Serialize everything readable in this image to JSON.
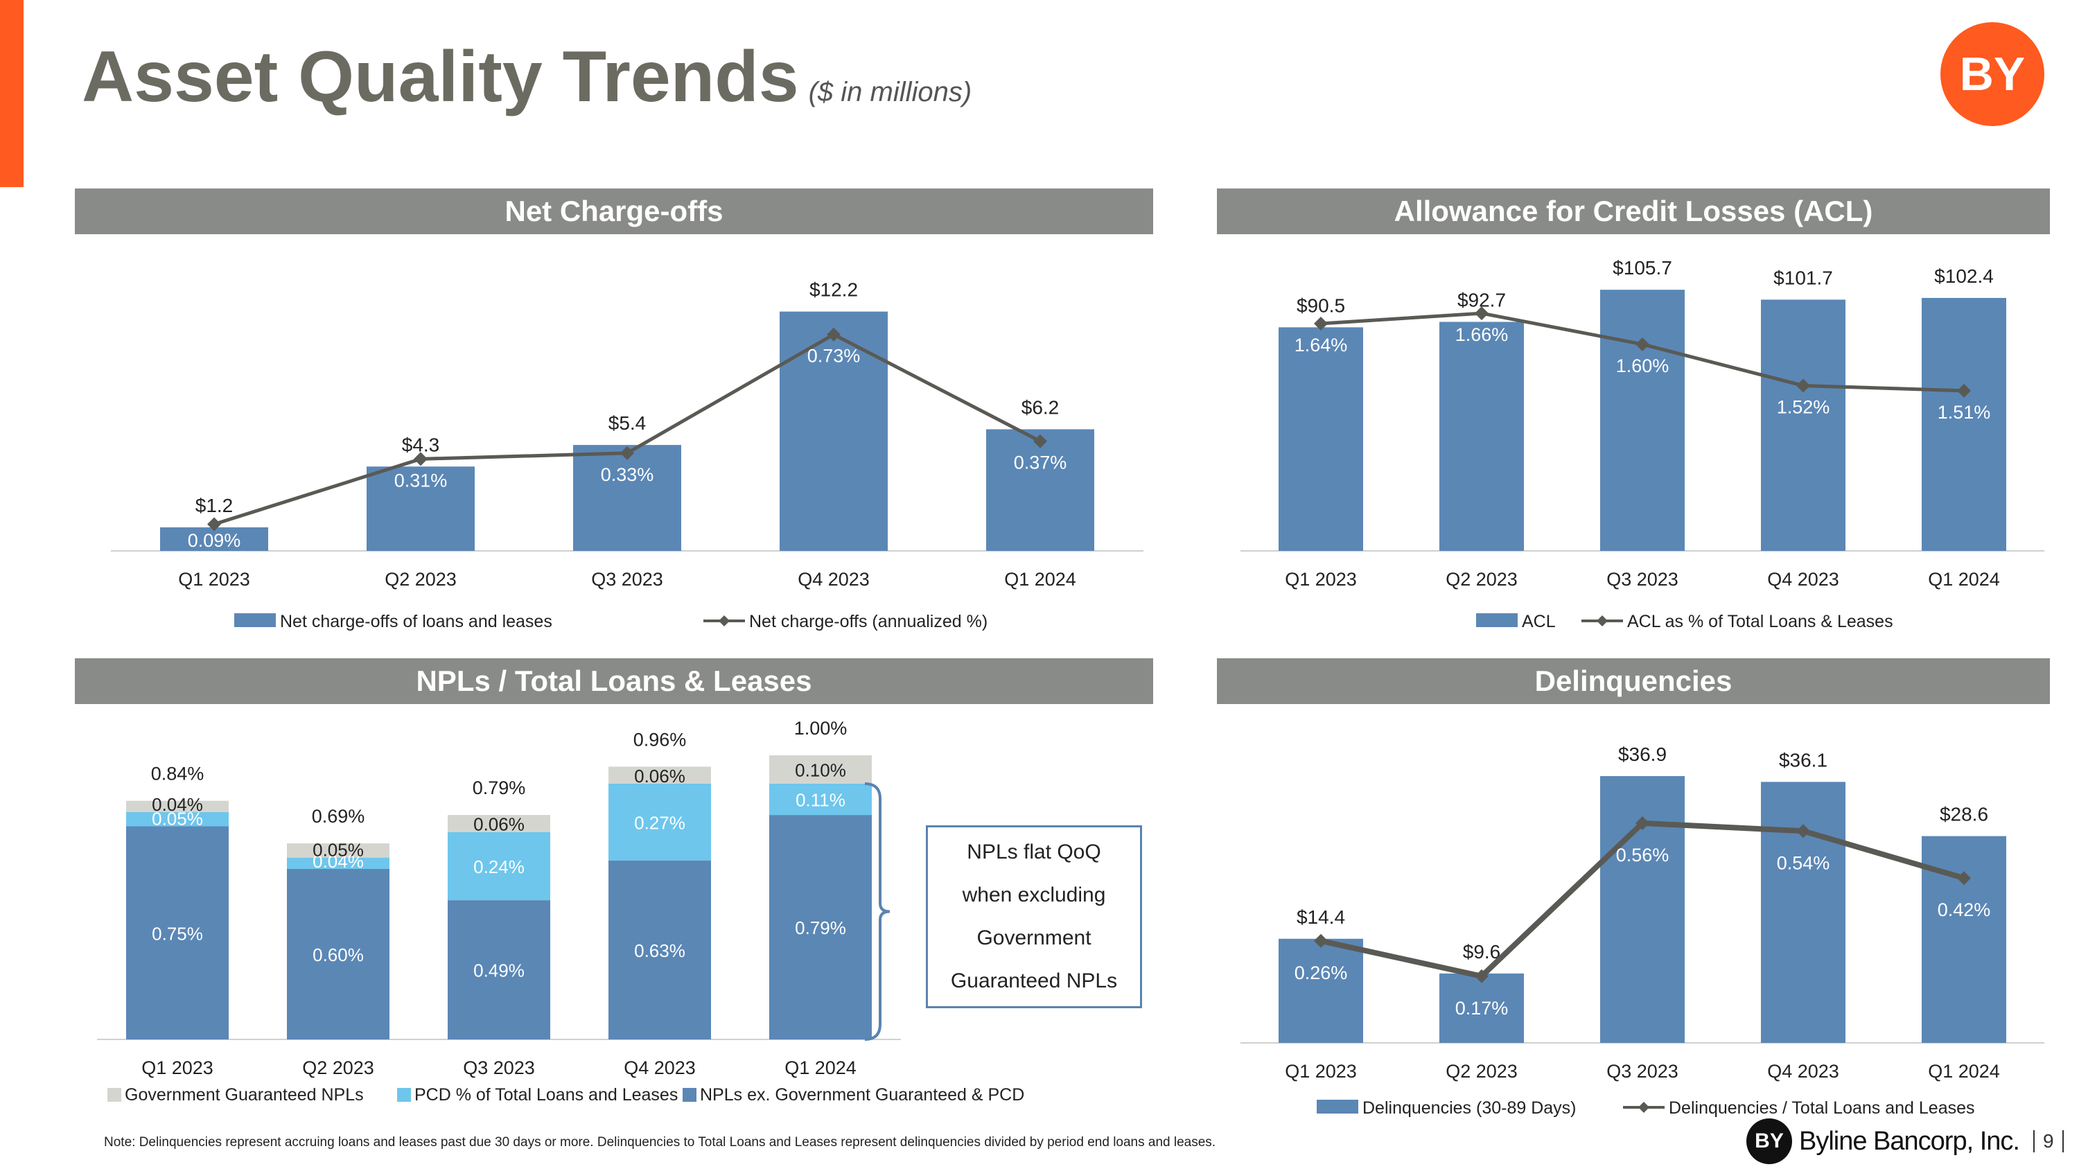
{
  "header": {
    "title": "Asset Quality Trends",
    "subtitle": "($ in millions)",
    "logo_text": "BY"
  },
  "colors": {
    "accent": "#ff5a1f",
    "bar_blue": "#5b87b5",
    "light_blue": "#6ec6ec",
    "gray_segment": "#d5d5d0",
    "line_gray": "#5a5a55",
    "section_header": "#898b88"
  },
  "chart_data": [
    {
      "id": "net-charge-offs",
      "section_title": "Net Charge-offs",
      "type": "bar",
      "categories": [
        "Q1 2023",
        "Q2 2023",
        "Q3 2023",
        "Q4 2023",
        "Q1 2024"
      ],
      "series": [
        {
          "name": "Net charge-offs of loans and leases",
          "kind": "bar",
          "values": [
            1.2,
            4.3,
            5.4,
            12.2,
            6.2
          ],
          "labels": [
            "$1.2",
            "$4.3",
            "$5.4",
            "$12.2",
            "$6.2"
          ]
        },
        {
          "name": "Net charge-offs (annualized %)",
          "kind": "line",
          "values": [
            0.09,
            0.31,
            0.33,
            0.73,
            0.37
          ],
          "labels": [
            "0.09%",
            "0.31%",
            "0.33%",
            "0.73%",
            "0.37%"
          ]
        }
      ],
      "ylim_bar": [
        0,
        13.6
      ],
      "ylim_line": [
        0,
        0.9
      ]
    },
    {
      "id": "acl",
      "section_title": "Allowance for Credit Losses (ACL)",
      "type": "bar",
      "categories": [
        "Q1 2023",
        "Q2 2023",
        "Q3 2023",
        "Q4 2023",
        "Q1 2024"
      ],
      "series": [
        {
          "name": "ACL",
          "kind": "bar",
          "values": [
            90.5,
            92.7,
            105.7,
            101.7,
            102.4
          ],
          "labels": [
            "$90.5",
            "$92.7",
            "$105.7",
            "$101.7",
            "$102.4"
          ]
        },
        {
          "name": "ACL as % of Total Loans & Leases",
          "kind": "line",
          "values": [
            1.64,
            1.66,
            1.6,
            1.52,
            1.51
          ],
          "labels": [
            "1.64%",
            "1.66%",
            "1.60%",
            "1.52%",
            "1.51%"
          ]
        }
      ],
      "ylim_bar": [
        0,
        115
      ],
      "ylim_line": [
        1.2,
        1.75
      ]
    },
    {
      "id": "npls",
      "section_title": "NPLs / Total Loans & Leases",
      "type": "bar",
      "stacked": true,
      "categories": [
        "Q1 2023",
        "Q2 2023",
        "Q3 2023",
        "Q4 2023",
        "Q1 2024"
      ],
      "series": [
        {
          "name": "NPLs ex. Government Guaranteed & PCD",
          "values": [
            0.75,
            0.6,
            0.49,
            0.63,
            0.79
          ],
          "labels": [
            "0.75%",
            "0.60%",
            "0.49%",
            "0.63%",
            "0.79%"
          ]
        },
        {
          "name": "PCD % of Total Loans and Leases",
          "values": [
            0.05,
            0.04,
            0.24,
            0.27,
            0.11
          ],
          "labels": [
            "0.05%",
            "0.04%",
            "0.24%",
            "0.27%",
            "0.11%"
          ]
        },
        {
          "name": "Government Guaranteed NPLs",
          "values": [
            0.04,
            0.05,
            0.06,
            0.06,
            0.1
          ],
          "labels": [
            "0.04%",
            "0.05%",
            "0.06%",
            "0.06%",
            "0.10%"
          ]
        }
      ],
      "totals": [
        "0.84%",
        "0.69%",
        "0.79%",
        "0.96%",
        "1.00%"
      ],
      "legend_order": [
        "Government Guaranteed NPLs",
        "PCD % of Total Loans and Leases",
        "NPLs ex. Government Guaranteed & PCD"
      ],
      "ylim": [
        0,
        1.0
      ],
      "callout_lines": [
        "NPLs flat QoQ",
        "when excluding",
        "Government",
        "Guaranteed NPLs"
      ]
    },
    {
      "id": "delinquencies",
      "section_title": "Delinquencies",
      "type": "bar",
      "categories": [
        "Q1 2023",
        "Q2 2023",
        "Q3 2023",
        "Q4 2023",
        "Q1 2024"
      ],
      "series": [
        {
          "name": "Delinquencies (30-89 Days)",
          "kind": "bar",
          "values": [
            14.4,
            9.6,
            36.9,
            36.1,
            28.6
          ],
          "labels": [
            "$14.4",
            "$9.6",
            "$36.9",
            "$36.1",
            "$28.6"
          ]
        },
        {
          "name": "Delinquencies / Total Loans and Leases",
          "kind": "line",
          "values": [
            0.26,
            0.17,
            0.56,
            0.54,
            0.42
          ],
          "labels": [
            "0.26%",
            "0.17%",
            "0.56%",
            "0.54%",
            "0.42%"
          ]
        }
      ],
      "ylim_bar": [
        0,
        36.9
      ],
      "ylim_line": [
        0,
        0.68
      ]
    }
  ],
  "note": "Note: Delinquencies represent accruing loans and leases past due 30 days or more. Delinquencies to Total Loans and Leases represent delinquencies divided by period end loans and leases.",
  "footer": {
    "logo_text": "BY",
    "company": "Byline Bancorp, Inc.",
    "page_number": "9"
  }
}
